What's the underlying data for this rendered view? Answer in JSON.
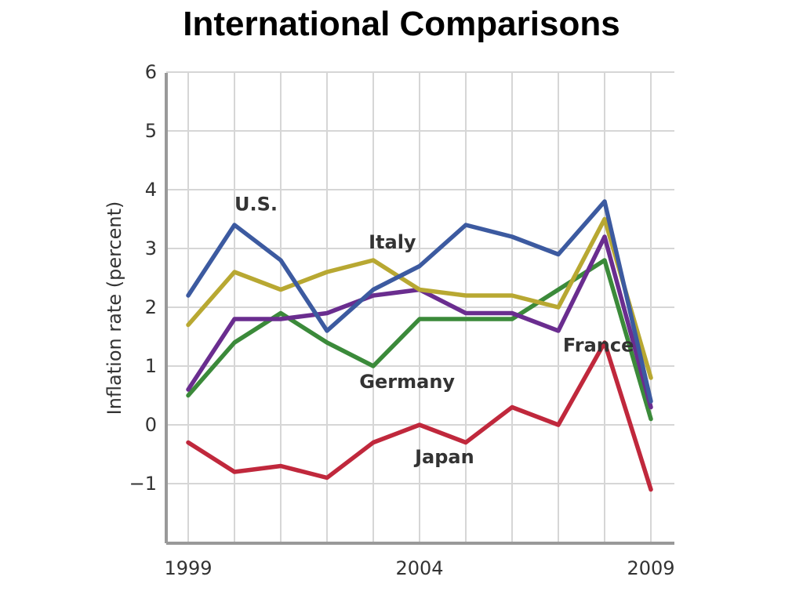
{
  "title": "International Comparisons",
  "chart_data": {
    "type": "line",
    "title": "International Comparisons",
    "xlabel": "",
    "ylabel": "Inflation rate (percent)",
    "x": [
      1999,
      2000,
      2001,
      2002,
      2003,
      2004,
      2005,
      2006,
      2007,
      2008,
      2009
    ],
    "x_ticks": [
      "1999",
      "2004",
      "2009"
    ],
    "y_ticks": [
      "6",
      "5",
      "4",
      "3",
      "2",
      "1",
      "0",
      "−1"
    ],
    "xlim": [
      1999,
      2009
    ],
    "ylim": [
      -2,
      6
    ],
    "grid": true,
    "legend": "labels placed directly on lines",
    "series": [
      {
        "name": "U.S.",
        "color": "#3c5aa0",
        "values": [
          2.2,
          3.4,
          2.8,
          1.6,
          2.3,
          2.7,
          3.4,
          3.2,
          2.9,
          3.8,
          0.4
        ]
      },
      {
        "name": "Italy",
        "color": "#b8a832",
        "values": [
          1.7,
          2.6,
          2.3,
          2.6,
          2.8,
          2.3,
          2.2,
          2.2,
          2.0,
          3.5,
          0.8
        ]
      },
      {
        "name": "France",
        "color": "#6a2d8f",
        "values": [
          0.6,
          1.8,
          1.8,
          1.9,
          2.2,
          2.3,
          1.9,
          1.9,
          1.6,
          3.2,
          0.3
        ]
      },
      {
        "name": "Germany",
        "color": "#3b8a3a",
        "values": [
          0.5,
          1.4,
          1.9,
          1.4,
          1.0,
          1.8,
          1.8,
          1.8,
          2.3,
          2.8,
          0.1
        ]
      },
      {
        "name": "Japan",
        "color": "#c0283c",
        "values": [
          -0.3,
          -0.8,
          -0.7,
          -0.9,
          -0.3,
          0.0,
          -0.3,
          0.3,
          0.0,
          1.4,
          -1.1
        ]
      }
    ]
  }
}
